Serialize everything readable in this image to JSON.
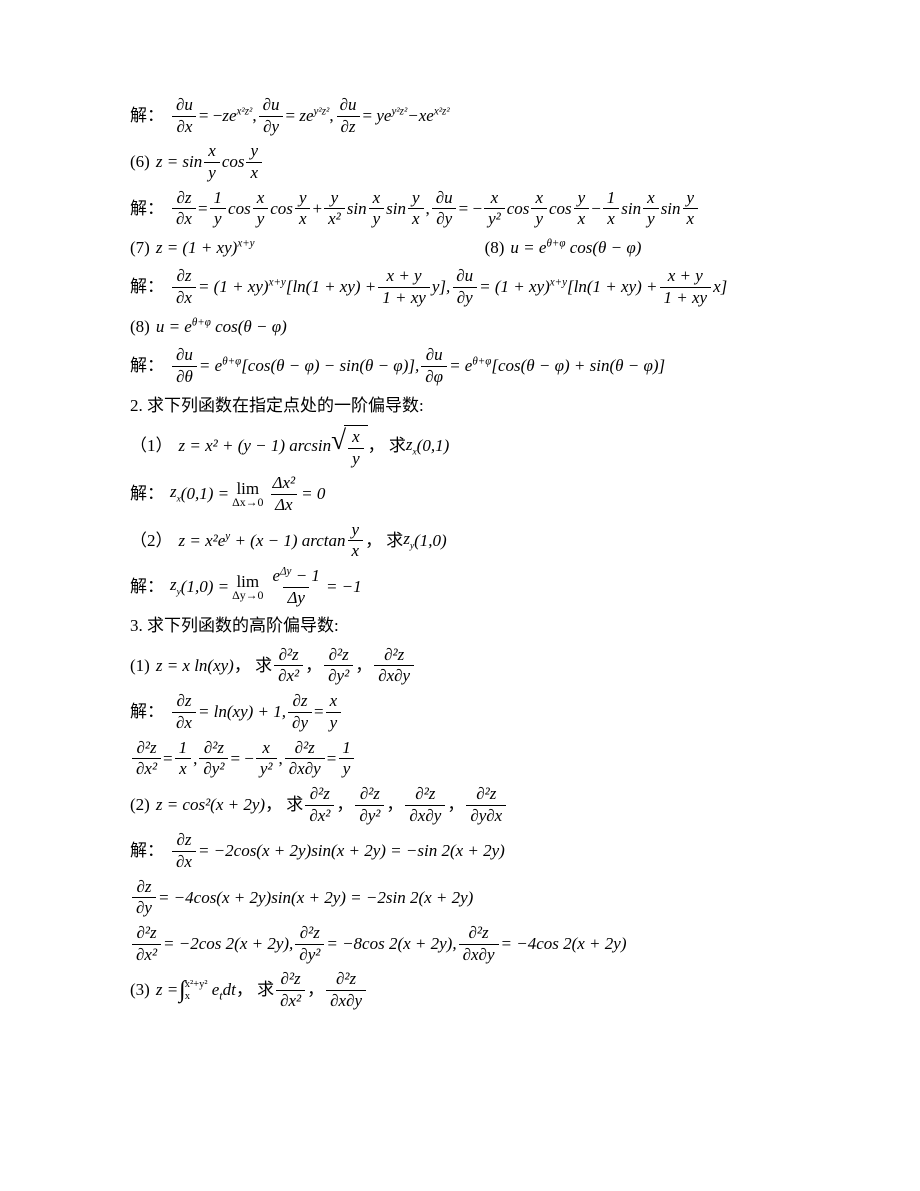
{
  "colors": {
    "text": "#000000",
    "bg": "#ffffff",
    "rule": "#000000"
  },
  "fonts": {
    "family": "Times New Roman / SimSun",
    "base_size_pt": 13
  },
  "lines": {
    "l1_lbl": "解：",
    "l1_a": "= −",
    "l1_b": ",",
    "l1_c": "=",
    "l1_d": ",",
    "l1_e": "=",
    "l2_lbl": "(6)",
    "l3_lbl": "解：",
    "l4a": "(7)",
    "l4b": "(8)",
    "l5_lbl": "解：",
    "l6_lbl": "(8)",
    "l7_lbl": "解：",
    "l8": "2. 求下列函数在指定点处的一阶偏导数:",
    "l9_lbl": "（1）",
    "l9_mid": "，   求",
    "l10_lbl": "解：",
    "l11_lbl": "（2）",
    "l11_mid": "，   求",
    "l12_lbl": "解：",
    "l13": "3. 求下列函数的高阶偏导数:",
    "l14_lbl": "(1)",
    "l14_mid": " ，        求",
    "l15_lbl": "解：",
    "l17_lbl": "(2)",
    "l17_mid": " ，   求",
    "l18_lbl": "解：",
    "l21_lbl": "(3)",
    "l21_mid": " ，       求",
    "sep_comma": " ，   ",
    "s_du": "∂u",
    "s_dz": "∂z",
    "s_dx": "∂x",
    "s_dy": "∂y",
    "s_dzz": "∂z",
    "s_dth": "∂θ",
    "s_dph": "∂φ",
    "s_d2z": "∂²z",
    "s_dx2": "∂x²",
    "s_dy2": "∂y²",
    "s_dxdy": "∂x∂y",
    "s_dydx": "∂y∂x",
    "t_x": "x",
    "t_y": "y",
    "t_z": "z",
    "t_u": "u",
    "t_xy": "xy",
    "t_1": "1",
    "eq": "=",
    "minus": "−",
    "plus": "+",
    "comma": ",",
    "e1_a": "ze",
    "e1_a_sup": "x²z²",
    "e1_b": "ze",
    "e1_b_sup": "y²z²",
    "e1_c1": "ye",
    "e1_c1_sup": "y²z²",
    "e1_c2": "xe",
    "e1_c2_sup": "x²z²",
    "e2_z": "z = sin",
    "e2_cos": "cos",
    "e3_sin": "sin",
    "e3_cos": "cos",
    "e3_yx2": "x²",
    "e4a_z": "z = (1 + xy)",
    "e4a_sup": "x+y",
    "e4b_u": "u = e",
    "e4b_sup": "θ+φ",
    "e4b_tail": "cos(θ − φ)",
    "e5_head": "= (1 + xy)",
    "e5_sup": "x+y",
    "e5_br1": "[ln(1 + xy) +",
    "e5_f_n": "x + y",
    "e5_f_d": "1 + xy",
    "e5_mid1": " y],",
    "e5_mid2": " x]",
    "e6_u": "u = e",
    "e6_sup": "θ+φ",
    "e6_tail": "cos(θ − φ)",
    "e7_e": "= e",
    "e7_sup": "θ+φ",
    "e7_a": "[cos(θ − φ) − sin(θ − φ)],",
    "e7_b": "[cos(θ − φ) + sin(θ − φ)]",
    "e9_a": "z = x² + (y − 1) arcsin",
    "e9_zx": "z",
    "e9_zx_sub": "x",
    "e9_pt": "(0,1)",
    "e10_zx": "z",
    "e10_sub": "x",
    "e10_pt": "(0,1) =",
    "e10_lim_bot": "Δx→0",
    "e10_fn": "Δx²",
    "e10_fd": "Δx",
    "e10_tail": "= 0",
    "e11_a": "z = x²e",
    "e11_sup": "y",
    "e11_b": "+ (x − 1) arctan",
    "e11_zy": "z",
    "e11_zy_sub": "y",
    "e11_pt": "(1,0)",
    "e12_zy": "z",
    "e12_sub": "y",
    "e12_pt": "(1,0) =",
    "e12_lim_bot": "Δy→0",
    "e12_fn_a": "e",
    "e12_fn_sup": "Δy",
    "e12_fn_b": "− 1",
    "e12_fd": "Δy",
    "e12_tail": "= −1",
    "e14_z": "z = x ln(xy)",
    "e15_a": "= ln(xy) + 1,",
    "e15_b": "=",
    "e16_a": "=",
    "e16_b": ",",
    "e16_c": "= −",
    "e16_d": ",",
    "e16_e": "=",
    "e17_z": "z = cos²(x + 2y)",
    "e18_a": "= −2cos(x + 2y)sin(x + 2y) = −sin 2(x + 2y)",
    "e19_a": "= −4cos(x + 2y)sin(x + 2y) = −2sin 2(x + 2y)",
    "e20_a": "= −2cos 2(x + 2y),",
    "e20_b": "= −8cos 2(x + 2y),",
    "e20_c": "= −4cos 2(x + 2y)",
    "e21_z_a": "z =",
    "e21_int": "∫",
    "e21_ub": "x²+y²",
    "e21_lb": "x",
    "e21_int_body": "e",
    "e21_int_sup": "t",
    "e21_int_tail": "dt",
    "lim": "lim"
  }
}
